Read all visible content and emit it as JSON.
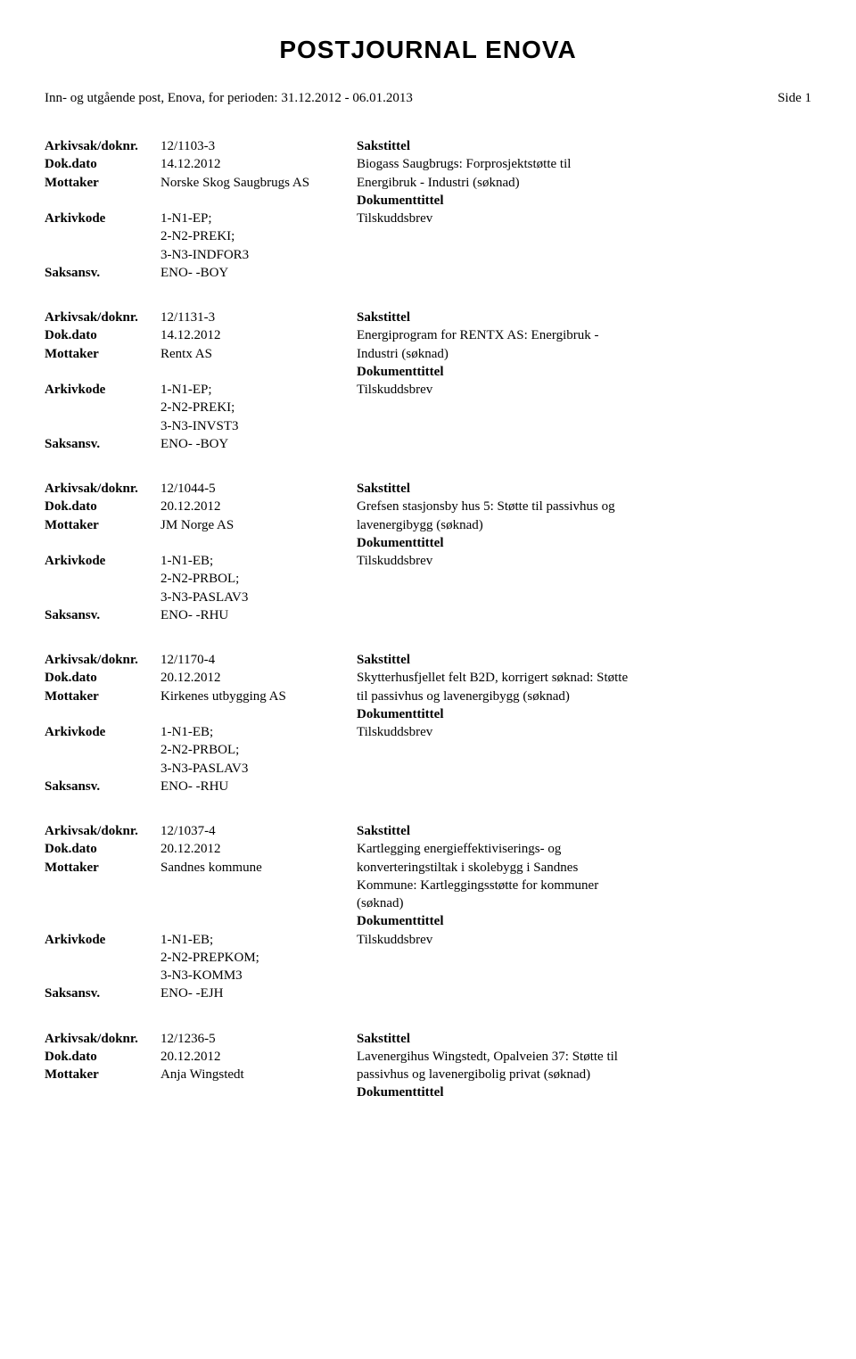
{
  "title": "POSTJOURNAL ENOVA",
  "header": {
    "left": "Inn- og utgående post, Enova, for perioden: 31.12.2012 - 06.01.2013",
    "right": "Side 1"
  },
  "labels": {
    "arkivsak": "Arkivsak/doknr.",
    "dokdato": "Dok.dato",
    "mottaker": "Mottaker",
    "arkivkode": "Arkivkode",
    "saksansv": "Saksansv."
  },
  "common": {
    "sakstittel": "Sakstittel",
    "dokumenttittel": "Dokumenttittel",
    "tilskuddsbrev": "Tilskuddsbrev"
  },
  "entries": [
    {
      "arkivsak": "12/1103-3",
      "dokdato": "14.12.2012",
      "mottaker": "Norske Skog Saugbrugs AS",
      "arkivkode": "1-N1-EP;\n2-N2-PREKI;\n3-N3-INDFOR3",
      "saksansv": "ENO- -BOY",
      "desc_line1": "Biogass Saugbrugs: Forprosjektstøtte til",
      "desc_line2": "Energibruk - Industri (søknad)",
      "has_tilskudd": true
    },
    {
      "arkivsak": "12/1131-3",
      "dokdato": "14.12.2012",
      "mottaker": "Rentx AS",
      "arkivkode": "1-N1-EP;\n2-N2-PREKI;\n3-N3-INVST3",
      "saksansv": "ENO- -BOY",
      "desc_line1": "Energiprogram for RENTX AS: Energibruk -",
      "desc_line2": "Industri (søknad)",
      "has_tilskudd": true
    },
    {
      "arkivsak": "12/1044-5",
      "dokdato": "20.12.2012",
      "mottaker": "JM Norge AS",
      "arkivkode": "1-N1-EB;\n2-N2-PRBOL;\n3-N3-PASLAV3",
      "saksansv": "ENO- -RHU",
      "desc_line1": "Grefsen stasjonsby hus 5: Støtte til passivhus og",
      "desc_line2": "lavenergibygg (søknad)",
      "has_tilskudd": true
    },
    {
      "arkivsak": "12/1170-4",
      "dokdato": "20.12.2012",
      "mottaker": "Kirkenes utbygging AS",
      "arkivkode": "1-N1-EB;\n2-N2-PRBOL;\n3-N3-PASLAV3",
      "saksansv": "ENO- -RHU",
      "desc_line1": "Skytterhusfjellet felt B2D, korrigert søknad: Støtte",
      "desc_line2": "til passivhus og lavenergibygg (søknad)",
      "has_tilskudd": true
    },
    {
      "arkivsak": "12/1037-4",
      "dokdato": "20.12.2012",
      "mottaker": "Sandnes kommune",
      "arkivkode": "1-N1-EB;\n2-N2-PREPKOM;\n3-N3-KOMM3",
      "saksansv": "ENO- -EJH",
      "desc_line1": "Kartlegging energieffektiviserings- og",
      "desc_line2": "konverteringstiltak i skolebygg i Sandnes",
      "desc_extra": "Kommune: Kartleggingsstøtte for kommuner\n(søknad)",
      "has_tilskudd": true
    },
    {
      "arkivsak": "12/1236-5",
      "dokdato": "20.12.2012",
      "mottaker": "Anja Wingstedt",
      "desc_line1": "Lavenergihus Wingstedt, Opalveien 37: Støtte til",
      "desc_line2": "passivhus og lavenergibolig privat (søknad)",
      "has_tilskudd": false,
      "truncated": true
    }
  ]
}
